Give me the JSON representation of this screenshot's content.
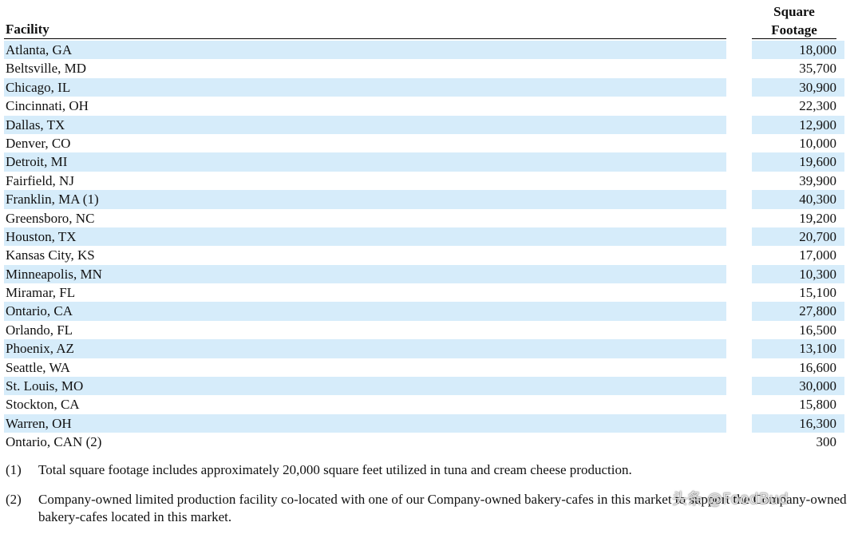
{
  "header": {
    "facility": "Facility",
    "square_line1": "Square",
    "square_line2": "Footage"
  },
  "rows": [
    {
      "facility": "Atlanta, GA",
      "square_footage": "18,000"
    },
    {
      "facility": "Beltsville, MD",
      "square_footage": "35,700"
    },
    {
      "facility": "Chicago, IL",
      "square_footage": "30,900"
    },
    {
      "facility": "Cincinnati, OH",
      "square_footage": "22,300"
    },
    {
      "facility": "Dallas, TX",
      "square_footage": "12,900"
    },
    {
      "facility": "Denver, CO",
      "square_footage": "10,000"
    },
    {
      "facility": "Detroit, MI",
      "square_footage": "19,600"
    },
    {
      "facility": "Fairfield, NJ",
      "square_footage": "39,900"
    },
    {
      "facility": "Franklin, MA (1)",
      "square_footage": "40,300"
    },
    {
      "facility": "Greensboro, NC",
      "square_footage": "19,200"
    },
    {
      "facility": "Houston, TX",
      "square_footage": "20,700"
    },
    {
      "facility": "Kansas City, KS",
      "square_footage": "17,000"
    },
    {
      "facility": "Minneapolis, MN",
      "square_footage": "10,300"
    },
    {
      "facility": "Miramar, FL",
      "square_footage": "15,100"
    },
    {
      "facility": "Ontario, CA",
      "square_footage": "27,800"
    },
    {
      "facility": "Orlando, FL",
      "square_footage": "16,500"
    },
    {
      "facility": "Phoenix, AZ",
      "square_footage": "13,100"
    },
    {
      "facility": "Seattle, WA",
      "square_footage": "16,600"
    },
    {
      "facility": "St. Louis, MO",
      "square_footage": "30,000"
    },
    {
      "facility": "Stockton, CA",
      "square_footage": "15,800"
    },
    {
      "facility": "Warren, OH",
      "square_footage": "16,300"
    },
    {
      "facility": "Ontario, CAN (2)",
      "square_footage": "300"
    }
  ],
  "footnotes": [
    {
      "marker": "(1)",
      "text": "Total square footage includes approximately 20,000 square feet utilized in tuna and cream cheese production."
    },
    {
      "marker": "(2)",
      "text": "Company-owned limited production facility co-located with one of our Company-owned bakery-cafes in this market to support the Company-owned bakery-cafes located in this market."
    }
  ],
  "watermark": "头条 @FoodBud",
  "colors": {
    "row_shade": "#d6ecfa",
    "text": "#111111"
  }
}
